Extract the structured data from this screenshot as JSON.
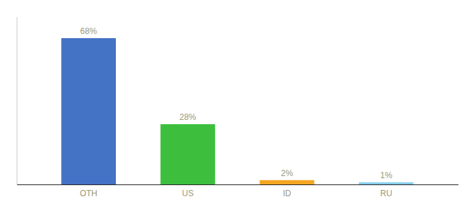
{
  "chart_data": {
    "type": "bar",
    "categories": [
      "OTH",
      "US",
      "ID",
      "RU"
    ],
    "values": [
      68,
      28,
      2,
      1
    ],
    "value_labels": [
      "68%",
      "28%",
      "2%",
      "1%"
    ],
    "data_labels": true,
    "colors": [
      "#4472C4",
      "#3DBF3D",
      "#F5A623",
      "#87CEEB"
    ],
    "ylim": [
      0,
      78
    ],
    "grid": false,
    "tick_labels": "x"
  }
}
